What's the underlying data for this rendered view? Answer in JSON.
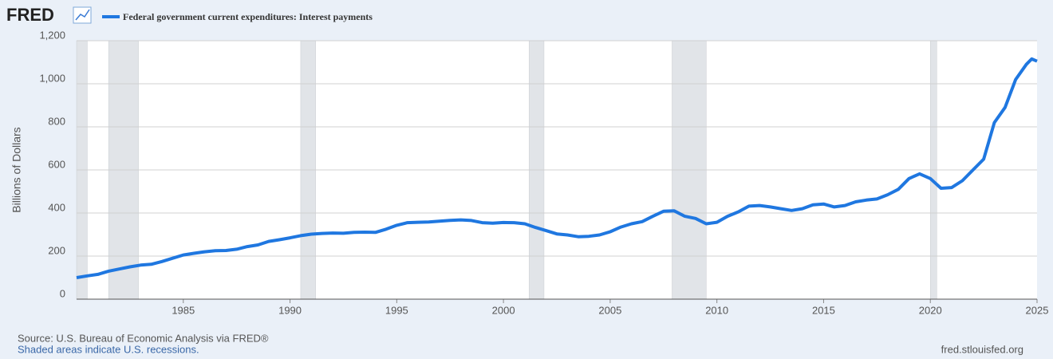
{
  "chart_data": {
    "type": "line",
    "logo": "FRED",
    "ylabel": "Billions of Dollars",
    "source": "Source: U.S. Bureau of Economic Analysis via FRED®",
    "note": "Shaded areas indicate U.S. recessions.",
    "site": "fred.stlouisfed.org",
    "xlim": [
      1980,
      2025
    ],
    "xticks": [
      1985,
      1990,
      1995,
      2000,
      2005,
      2010,
      2015,
      2020,
      2025
    ],
    "ylim": [
      0,
      1200
    ],
    "yticks": [
      0,
      200,
      400,
      600,
      800,
      {
        "value": 1000,
        "label": "1,000"
      },
      {
        "value": 1200,
        "label": "1,200"
      }
    ],
    "grid": true,
    "recessions": [
      [
        1980.0,
        1980.5
      ],
      [
        1981.5,
        1982.9
      ],
      [
        1990.5,
        1991.2
      ],
      [
        2001.2,
        2001.9
      ],
      [
        2007.9,
        2009.5
      ],
      [
        2020.0,
        2020.3
      ]
    ],
    "recession_color": "#e1e4e8",
    "x": [
      1980.0,
      1980.5,
      1981.0,
      1981.5,
      1982.0,
      1982.5,
      1983.0,
      1983.5,
      1984.0,
      1984.5,
      1985.0,
      1985.5,
      1986.0,
      1986.5,
      1987.0,
      1987.5,
      1988.0,
      1988.5,
      1989.0,
      1989.5,
      1990.0,
      1990.5,
      1991.0,
      1991.5,
      1992.0,
      1992.5,
      1993.0,
      1993.5,
      1994.0,
      1994.5,
      1995.0,
      1995.5,
      1996.0,
      1996.5,
      1997.0,
      1997.5,
      1998.0,
      1998.5,
      1999.0,
      1999.5,
      2000.0,
      2000.5,
      2001.0,
      2001.5,
      2002.0,
      2002.5,
      2003.0,
      2003.5,
      2004.0,
      2004.5,
      2005.0,
      2005.5,
      2006.0,
      2006.5,
      2007.0,
      2007.5,
      2008.0,
      2008.5,
      2009.0,
      2009.5,
      2010.0,
      2010.5,
      2011.0,
      2011.5,
      2012.0,
      2012.5,
      2013.0,
      2013.5,
      2014.0,
      2014.5,
      2015.0,
      2015.5,
      2016.0,
      2016.5,
      2017.0,
      2017.5,
      2018.0,
      2018.5,
      2019.0,
      2019.5,
      2020.0,
      2020.5,
      2021.0,
      2021.5,
      2022.0,
      2022.5,
      2023.0,
      2023.5,
      2024.0,
      2024.5,
      2024.75,
      2025.0
    ],
    "series": [
      {
        "name": "Federal government current expenditures: Interest payments",
        "color": "#1f77e0",
        "values": [
          100,
          108,
          115,
          130,
          140,
          150,
          158,
          162,
          175,
          190,
          205,
          213,
          220,
          225,
          226,
          232,
          244,
          252,
          268,
          276,
          285,
          295,
          302,
          305,
          307,
          306,
          310,
          311,
          310,
          325,
          343,
          355,
          357,
          358,
          362,
          366,
          368,
          365,
          355,
          353,
          356,
          355,
          350,
          333,
          318,
          303,
          298,
          290,
          292,
          298,
          313,
          335,
          350,
          360,
          385,
          408,
          410,
          385,
          375,
          350,
          357,
          385,
          405,
          432,
          435,
          428,
          420,
          412,
          420,
          438,
          442,
          428,
          435,
          452,
          460,
          465,
          485,
          510,
          560,
          582,
          560,
          515,
          518,
          550,
          600,
          650,
          820,
          890,
          1020,
          1090,
          1115,
          1105
        ]
      }
    ]
  }
}
